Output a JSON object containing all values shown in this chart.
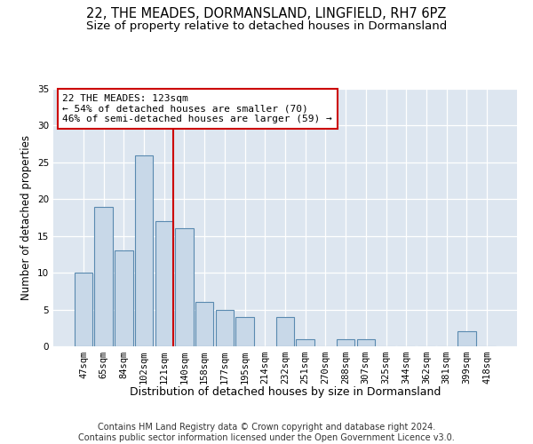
{
  "title1": "22, THE MEADES, DORMANSLAND, LINGFIELD, RH7 6PZ",
  "title2": "Size of property relative to detached houses in Dormansland",
  "xlabel": "Distribution of detached houses by size in Dormansland",
  "ylabel": "Number of detached properties",
  "categories": [
    "47sqm",
    "65sqm",
    "84sqm",
    "102sqm",
    "121sqm",
    "140sqm",
    "158sqm",
    "177sqm",
    "195sqm",
    "214sqm",
    "232sqm",
    "251sqm",
    "270sqm",
    "288sqm",
    "307sqm",
    "325sqm",
    "344sqm",
    "362sqm",
    "381sqm",
    "399sqm",
    "418sqm"
  ],
  "values": [
    10,
    19,
    13,
    26,
    17,
    16,
    6,
    5,
    4,
    0,
    4,
    1,
    0,
    1,
    1,
    0,
    0,
    0,
    0,
    2,
    0
  ],
  "bar_color": "#c8d8e8",
  "bar_edge_color": "#5a8ab0",
  "background_color": "#dde6f0",
  "vline_x_index": 4,
  "vline_color": "#cc0000",
  "annotation_line1": "22 THE MEADES: 123sqm",
  "annotation_line2": "← 54% of detached houses are smaller (70)",
  "annotation_line3": "46% of semi-detached houses are larger (59) →",
  "annotation_box_color": "#ffffff",
  "annotation_box_edge_color": "#cc0000",
  "footer_text": "Contains HM Land Registry data © Crown copyright and database right 2024.\nContains public sector information licensed under the Open Government Licence v3.0.",
  "ylim": [
    0,
    35
  ],
  "yticks": [
    0,
    5,
    10,
    15,
    20,
    25,
    30,
    35
  ],
  "title1_fontsize": 10.5,
  "title2_fontsize": 9.5,
  "xlabel_fontsize": 9,
  "ylabel_fontsize": 8.5,
  "tick_fontsize": 7.5,
  "annotation_fontsize": 8,
  "footer_fontsize": 7
}
